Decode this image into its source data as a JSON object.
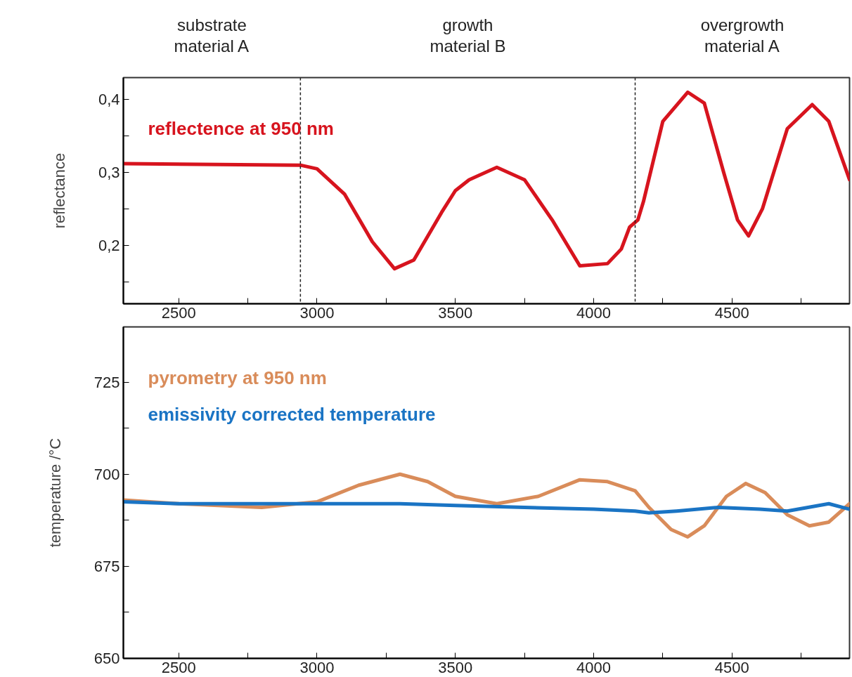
{
  "chart_data": [
    {
      "type": "line",
      "ylabel": "reflectance",
      "annotations": [
        "substrate\nmaterial A",
        "growth\nmaterial B",
        "overgrowth\nmaterial A"
      ],
      "xlim": [
        2300,
        4925
      ],
      "ylim": [
        0.12,
        0.43
      ],
      "xticks": [
        2500,
        {
          "value": 2750,
          "label": null
        },
        3000,
        {
          "value": 3250,
          "label": null
        },
        3500,
        {
          "value": 3750,
          "label": null
        },
        4000,
        {
          "value": 4250,
          "label": null
        },
        4500,
        {
          "value": 4750,
          "label": null
        }
      ],
      "yticks": [
        {
          "value": 0.15,
          "label": null
        },
        {
          "value": 0.2,
          "label": "0,2"
        },
        {
          "value": 0.25,
          "label": null
        },
        {
          "value": 0.3,
          "label": "0,3"
        },
        {
          "value": 0.35,
          "label": null
        },
        {
          "value": 0.4,
          "label": "0,4"
        }
      ],
      "ref_lines": [
        {
          "axis": "x",
          "value": 2940,
          "color": "#222222",
          "line_style": "dashed"
        },
        {
          "axis": "x",
          "value": 4150,
          "color": "#222222",
          "line_style": "dashed"
        }
      ],
      "legend": "top left",
      "grid": false,
      "series": [
        {
          "name": "reflectence at 950 nm",
          "color": "#d7141e",
          "x": [
            2300,
            2940,
            3000,
            3100,
            3200,
            3280,
            3350,
            3450,
            3500,
            3550,
            3650,
            3750,
            3850,
            3950,
            4050,
            4100,
            4130,
            4160,
            4180,
            4250,
            4340,
            4400,
            4470,
            4520,
            4560,
            4610,
            4700,
            4790,
            4850,
            4925
          ],
          "values": [
            0.312,
            0.31,
            0.305,
            0.27,
            0.205,
            0.168,
            0.18,
            0.245,
            0.275,
            0.29,
            0.307,
            0.29,
            0.235,
            0.172,
            0.175,
            0.195,
            0.225,
            0.235,
            0.26,
            0.37,
            0.41,
            0.395,
            0.3,
            0.235,
            0.213,
            0.25,
            0.36,
            0.393,
            0.37,
            0.29
          ]
        }
      ]
    },
    {
      "type": "line",
      "ylabel": "temperature /°C",
      "xlim": [
        2300,
        4925
      ],
      "ylim": [
        650,
        740
      ],
      "xticks": [
        2500,
        {
          "value": 2750,
          "label": null
        },
        3000,
        {
          "value": 3250,
          "label": null
        },
        3500,
        {
          "value": 3750,
          "label": null
        },
        4000,
        {
          "value": 4250,
          "label": null
        },
        4500,
        {
          "value": 4750,
          "label": null
        }
      ],
      "yticks": [
        650,
        {
          "value": 662.5,
          "label": null
        },
        675,
        {
          "value": 687.5,
          "label": null
        },
        700,
        {
          "value": 712.5,
          "label": null
        },
        725
      ],
      "legend": "top left",
      "grid": false,
      "series": [
        {
          "name": "pyrometry at 950 nm",
          "color": "#d98c5a",
          "x": [
            2300,
            2500,
            2800,
            3000,
            3150,
            3300,
            3400,
            3500,
            3650,
            3800,
            3950,
            4050,
            4150,
            4200,
            4280,
            4340,
            4400,
            4480,
            4550,
            4620,
            4700,
            4780,
            4850,
            4925
          ],
          "values": [
            693,
            692,
            691,
            692.5,
            697,
            700,
            698,
            694,
            692,
            694,
            698.5,
            698,
            695.5,
            691,
            685,
            683,
            686,
            694,
            697.5,
            695,
            689,
            686,
            687,
            692
          ]
        },
        {
          "name": "emissivity corrected temperature",
          "color": "#1a74c4",
          "x": [
            2300,
            2500,
            3000,
            3300,
            3500,
            4000,
            4150,
            4200,
            4300,
            4450,
            4600,
            4700,
            4850,
            4925
          ],
          "values": [
            692.5,
            692,
            692,
            692,
            691.5,
            690.5,
            690,
            689.5,
            690,
            691,
            690.5,
            690,
            692,
            690.5
          ]
        }
      ]
    }
  ]
}
